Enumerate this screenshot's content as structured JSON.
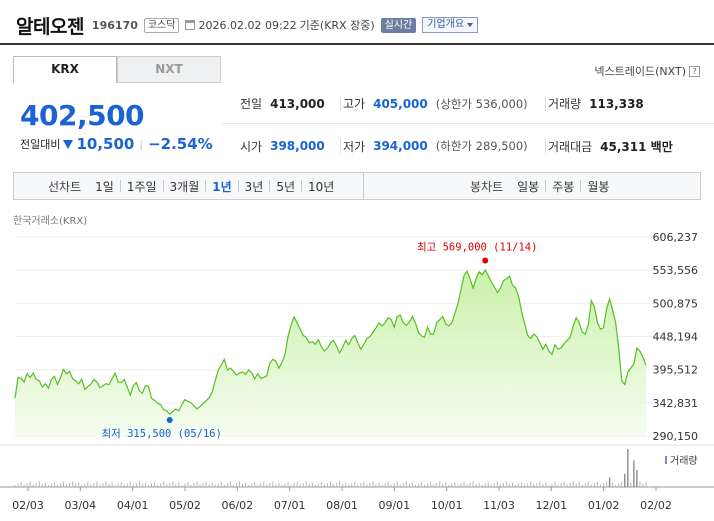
{
  "header": {
    "name": "알테오젠",
    "code": "196170",
    "market": "코스닥",
    "datetime": "2026.02.02 09:22",
    "basis": "기준(KRX 장중)",
    "live_label": "실시간",
    "company_info": "기업개요"
  },
  "tabs": [
    {
      "label": "KRX",
      "active": true
    },
    {
      "label": "NXT",
      "active": false
    }
  ],
  "nxt_link": {
    "label": "넥스트레이드(NXT)",
    "help_icon": "?"
  },
  "price": {
    "current": "402,500",
    "change_label": "전일대비",
    "change_amount": "10,500",
    "change_pct": "−2.54%",
    "direction": "down"
  },
  "stats": {
    "prev_close": {
      "label": "전일",
      "value": "413,000"
    },
    "high": {
      "label": "고가",
      "value": "405,000",
      "sub": "(상한가 536,000)"
    },
    "volume": {
      "label": "거래량",
      "value": "113,338"
    },
    "open": {
      "label": "시가",
      "value": "398,000"
    },
    "low": {
      "label": "저가",
      "value": "394,000",
      "sub": "(하한가 289,500)"
    },
    "amount": {
      "label": "거래대금",
      "value": "45,311",
      "unit": "백만"
    }
  },
  "period_bar": {
    "line_label": "선차트",
    "line_periods": [
      "1일",
      "1주일",
      "3개월",
      "1년",
      "3년",
      "5년",
      "10년"
    ],
    "active_period": "1년",
    "candle_label": "봉차트",
    "candle_periods": [
      "일봉",
      "주봉",
      "월봉"
    ]
  },
  "exchange_label": "한국거래소(KRX)",
  "colors": {
    "accent_blue": "#1a62d6",
    "line_green": "#55c01e",
    "area_green_top": "#c6f0a6",
    "high_marker": "#e00000",
    "low_marker": "#1a62d6"
  },
  "chart_data": {
    "type": "area",
    "ylim": [
      290150,
      606237
    ],
    "yticks": [
      "606,237",
      "553,556",
      "500,875",
      "448,194",
      "395,512",
      "342,831",
      "290,150"
    ],
    "x_tick_labels": [
      "02/03",
      "03/04",
      "04/01",
      "05/02",
      "06/02",
      "07/01",
      "08/01",
      "09/01",
      "10/01",
      "11/03",
      "12/01",
      "01/02",
      "02/02"
    ],
    "series": [
      {
        "values": [
          [
            0,
            350000
          ],
          [
            1,
            383000
          ],
          [
            2,
            382000
          ],
          [
            3,
            376000
          ],
          [
            4,
            389000
          ],
          [
            5,
            383000
          ],
          [
            6,
            390000
          ],
          [
            7,
            380000
          ],
          [
            8,
            378000
          ],
          [
            9,
            368000
          ],
          [
            10,
            373000
          ],
          [
            11,
            366000
          ],
          [
            12,
            380000
          ],
          [
            13,
            385000
          ],
          [
            14,
            372000
          ],
          [
            15,
            383000
          ],
          [
            16,
            396000
          ],
          [
            17,
            389000
          ],
          [
            18,
            393000
          ],
          [
            19,
            381000
          ],
          [
            20,
            378000
          ],
          [
            21,
            373000
          ],
          [
            22,
            380000
          ],
          [
            23,
            364000
          ],
          [
            24,
            369000
          ],
          [
            25,
            372000
          ],
          [
            26,
            380000
          ],
          [
            27,
            376000
          ],
          [
            28,
            367000
          ],
          [
            29,
            370000
          ],
          [
            30,
            373000
          ],
          [
            31,
            372000
          ],
          [
            32,
            381000
          ],
          [
            33,
            390000
          ],
          [
            34,
            376000
          ],
          [
            35,
            375000
          ],
          [
            36,
            380000
          ],
          [
            37,
            368000
          ],
          [
            38,
            355000
          ],
          [
            39,
            370000
          ],
          [
            40,
            375000
          ],
          [
            41,
            362000
          ],
          [
            42,
            358000
          ],
          [
            43,
            370000
          ],
          [
            44,
            369000
          ],
          [
            45,
            350000
          ],
          [
            46,
            347000
          ],
          [
            47,
            342000
          ],
          [
            48,
            340000
          ],
          [
            49,
            332000
          ],
          [
            50,
            330000
          ],
          [
            51,
            325000
          ],
          [
            52,
            329000
          ],
          [
            53,
            333000
          ],
          [
            54,
            330000
          ],
          [
            55,
            340000
          ],
          [
            56,
            348000
          ],
          [
            57,
            345000
          ],
          [
            58,
            343000
          ],
          [
            59,
            338000
          ],
          [
            60,
            333000
          ],
          [
            61,
            337000
          ],
          [
            62,
            342000
          ],
          [
            63,
            346000
          ],
          [
            64,
            351000
          ],
          [
            65,
            360000
          ],
          [
            66,
            378000
          ],
          [
            67,
            395000
          ],
          [
            68,
            403000
          ],
          [
            69,
            412000
          ],
          [
            70,
            395000
          ],
          [
            71,
            398000
          ],
          [
            72,
            393000
          ],
          [
            73,
            387000
          ],
          [
            74,
            390000
          ],
          [
            75,
            392000
          ],
          [
            76,
            388000
          ],
          [
            77,
            395000
          ],
          [
            78,
            391000
          ],
          [
            79,
            381000
          ],
          [
            80,
            389000
          ],
          [
            81,
            382000
          ],
          [
            82,
            383000
          ],
          [
            83,
            386000
          ],
          [
            84,
            406000
          ],
          [
            85,
            412000
          ],
          [
            86,
            409000
          ],
          [
            87,
            398000
          ],
          [
            88,
            407000
          ],
          [
            89,
            420000
          ],
          [
            90,
            448000
          ],
          [
            91,
            467000
          ],
          [
            92,
            479000
          ],
          [
            93,
            470000
          ],
          [
            94,
            460000
          ],
          [
            95,
            450000
          ],
          [
            96,
            447000
          ],
          [
            97,
            438000
          ],
          [
            98,
            440000
          ],
          [
            99,
            436000
          ],
          [
            100,
            443000
          ],
          [
            101,
            432000
          ],
          [
            102,
            425000
          ],
          [
            103,
            430000
          ],
          [
            104,
            438000
          ],
          [
            105,
            442000
          ],
          [
            106,
            433000
          ],
          [
            107,
            422000
          ],
          [
            108,
            431000
          ],
          [
            109,
            442000
          ],
          [
            110,
            435000
          ],
          [
            111,
            445000
          ],
          [
            112,
            450000
          ],
          [
            113,
            438000
          ],
          [
            114,
            428000
          ],
          [
            115,
            436000
          ],
          [
            116,
            445000
          ],
          [
            117,
            448000
          ],
          [
            118,
            455000
          ],
          [
            119,
            462000
          ],
          [
            120,
            470000
          ],
          [
            121,
            465000
          ],
          [
            122,
            470000
          ],
          [
            123,
            478000
          ],
          [
            124,
            475000
          ],
          [
            125,
            463000
          ],
          [
            126,
            480000
          ],
          [
            127,
            482000
          ],
          [
            128,
            470000
          ],
          [
            129,
            466000
          ],
          [
            130,
            471000
          ],
          [
            131,
            480000
          ],
          [
            132,
            470000
          ],
          [
            133,
            455000
          ],
          [
            134,
            449000
          ],
          [
            135,
            447000
          ],
          [
            136,
            463000
          ],
          [
            137,
            452000
          ],
          [
            138,
            452000
          ],
          [
            139,
            470000
          ],
          [
            140,
            475000
          ],
          [
            141,
            480000
          ],
          [
            142,
            468000
          ],
          [
            143,
            465000
          ],
          [
            144,
            470000
          ],
          [
            145,
            485000
          ],
          [
            146,
            500000
          ],
          [
            147,
            522000
          ],
          [
            148,
            545000
          ],
          [
            149,
            552000
          ],
          [
            150,
            540000
          ],
          [
            151,
            525000
          ],
          [
            152,
            540000
          ],
          [
            153,
            551000
          ],
          [
            154,
            546000
          ],
          [
            155,
            554000
          ],
          [
            156,
            545000
          ],
          [
            157,
            535000
          ],
          [
            158,
            527000
          ],
          [
            159,
            518000
          ],
          [
            160,
            525000
          ],
          [
            161,
            537000
          ],
          [
            162,
            540000
          ],
          [
            163,
            544000
          ],
          [
            164,
            530000
          ],
          [
            165,
            525000
          ],
          [
            166,
            512000
          ],
          [
            167,
            488000
          ],
          [
            168,
            468000
          ],
          [
            169,
            450000
          ],
          [
            170,
            445000
          ],
          [
            171,
            452000
          ],
          [
            172,
            448000
          ],
          [
            173,
            438000
          ],
          [
            174,
            428000
          ],
          [
            175,
            436000
          ],
          [
            176,
            425000
          ],
          [
            177,
            420000
          ],
          [
            178,
            435000
          ],
          [
            179,
            428000
          ],
          [
            180,
            430000
          ],
          [
            181,
            437000
          ],
          [
            182,
            442000
          ],
          [
            183,
            447000
          ],
          [
            184,
            465000
          ],
          [
            185,
            478000
          ],
          [
            186,
            470000
          ],
          [
            187,
            455000
          ],
          [
            188,
            452000
          ],
          [
            189,
            468000
          ],
          [
            190,
            505000
          ],
          [
            191,
            495000
          ],
          [
            192,
            470000
          ],
          [
            193,
            460000
          ],
          [
            194,
            462000
          ],
          [
            195,
            492000
          ],
          [
            196,
            508000
          ],
          [
            197,
            490000
          ],
          [
            198,
            470000
          ],
          [
            199,
            430000
          ],
          [
            200,
            378000
          ],
          [
            201,
            372000
          ],
          [
            202,
            392000
          ],
          [
            203,
            398000
          ],
          [
            204,
            405000
          ],
          [
            205,
            430000
          ],
          [
            206,
            425000
          ],
          [
            207,
            415000
          ],
          [
            208,
            402500
          ]
        ]
      }
    ],
    "annotations": [
      {
        "label": "최고 569,000 (11/14)",
        "x": 155,
        "y": 569000,
        "kind": "high"
      },
      {
        "label": "최저 315,500 (05/16)",
        "x": 51,
        "y": 315500,
        "kind": "low"
      }
    ],
    "volume_label": "거래량",
    "volume_spikes": [
      [
        202,
        1.0
      ],
      [
        204,
        0.7
      ],
      [
        201,
        0.35
      ],
      [
        196,
        0.25
      ],
      [
        205,
        0.45
      ]
    ]
  }
}
